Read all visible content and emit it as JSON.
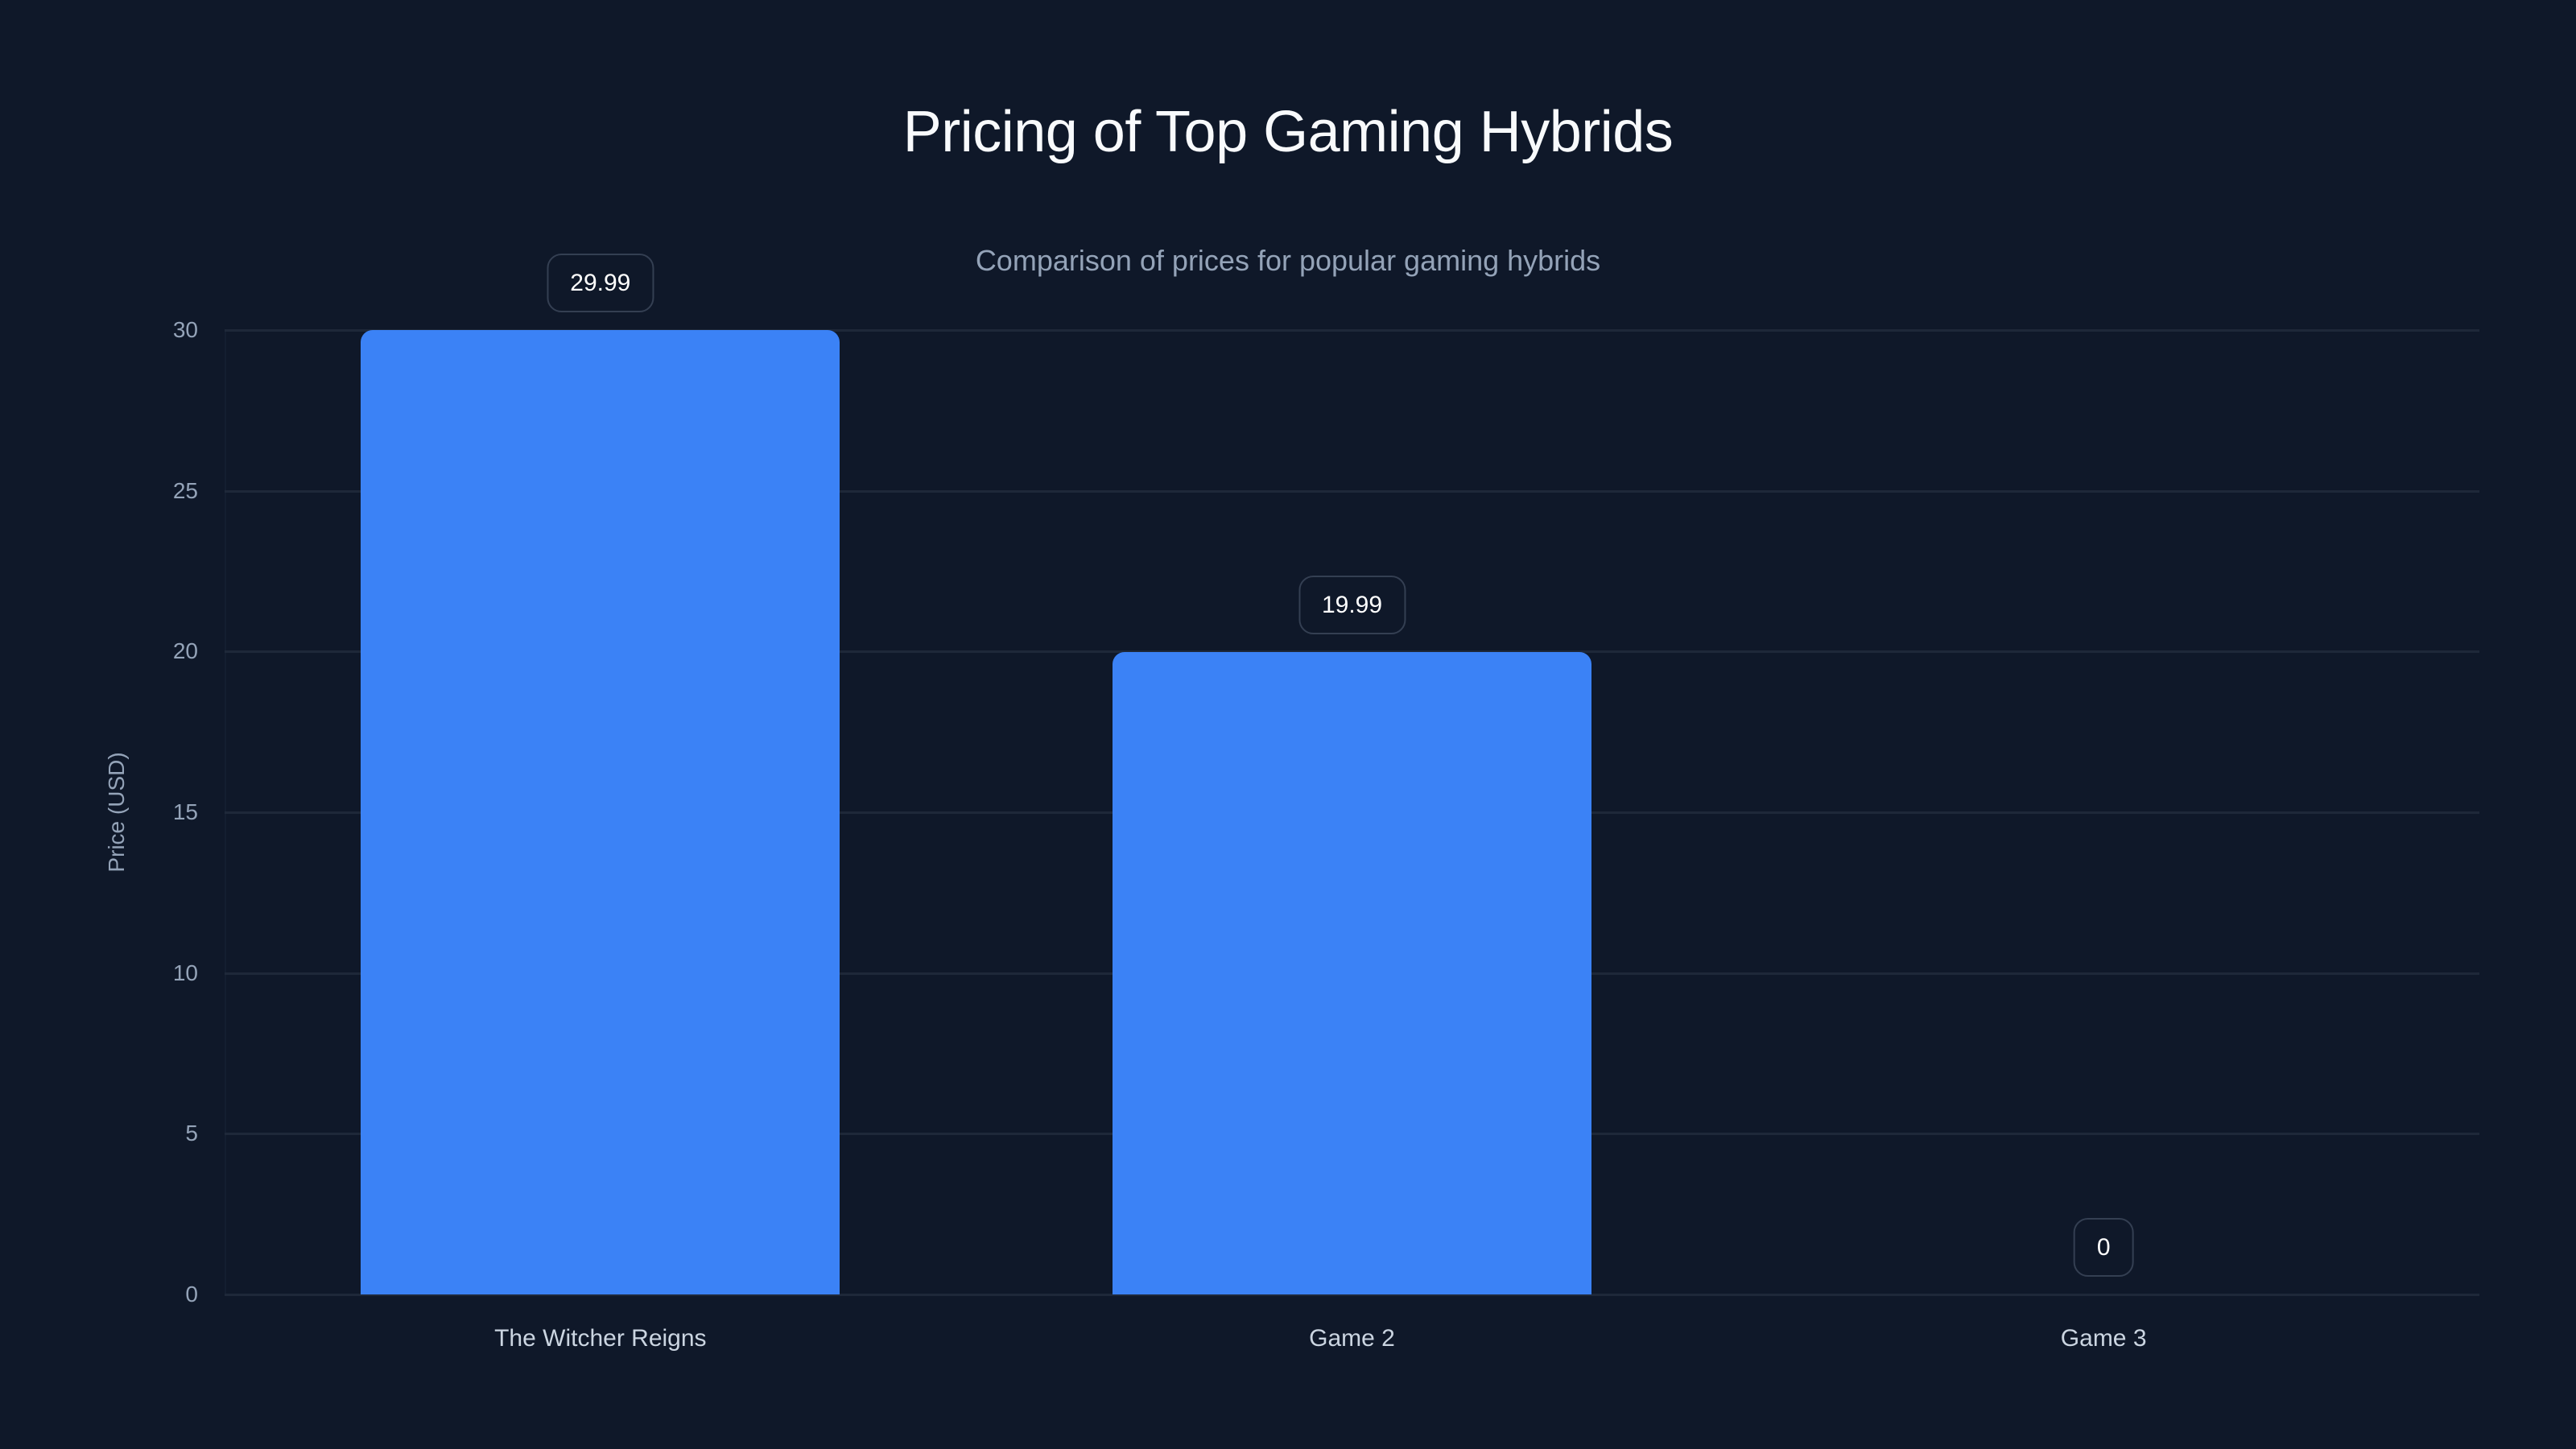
{
  "chart_data": {
    "type": "bar",
    "title": "Pricing of Top Gaming Hybrids",
    "subtitle": "Comparison of prices for popular gaming hybrids",
    "xlabel": "",
    "ylabel": "Price (USD)",
    "categories": [
      "The Witcher Reigns",
      "Game 2",
      "Game 3"
    ],
    "values": [
      29.99,
      19.99,
      0
    ],
    "value_labels": [
      "29.99",
      "19.99",
      "0"
    ],
    "ylim": [
      0,
      30
    ],
    "yticks": [
      0,
      5,
      10,
      15,
      20,
      25,
      30
    ],
    "grid": true,
    "legend": null,
    "colors": {
      "bar": "#3b82f6",
      "background": "#0f1829",
      "grid": "#1e2839",
      "tick_text": "#94a3b8",
      "category_text": "#cbd5e1",
      "badge_border": "#343f52"
    }
  },
  "header": {
    "title": "Pricing of Top Gaming Hybrids",
    "subtitle": "Comparison of prices for popular gaming hybrids"
  },
  "axes": {
    "y_title": "Price (USD)",
    "y_ticks": [
      "0",
      "5",
      "10",
      "15",
      "20",
      "25",
      "30"
    ]
  },
  "bars": [
    {
      "category": "The Witcher Reigns",
      "value_label": "29.99"
    },
    {
      "category": "Game 2",
      "value_label": "19.99"
    },
    {
      "category": "Game 3",
      "value_label": "0"
    }
  ]
}
